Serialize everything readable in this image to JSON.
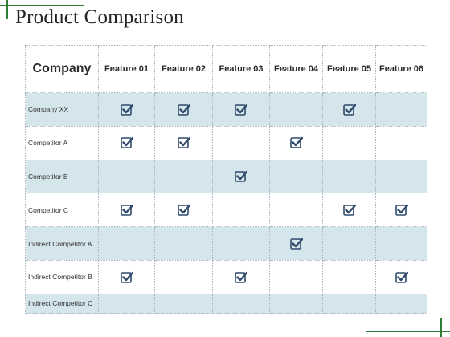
{
  "title": "Product Comparison",
  "table": {
    "company_header": "Company",
    "features": [
      "Feature 01",
      "Feature 02",
      "Feature 03",
      "Feature 04",
      "Feature 05",
      "Feature 06"
    ],
    "rows": [
      {
        "label": "Company XX",
        "checks": [
          true,
          true,
          true,
          false,
          true,
          false
        ]
      },
      {
        "label": "Competitor A",
        "checks": [
          true,
          true,
          false,
          true,
          false,
          false
        ]
      },
      {
        "label": "Competitor B",
        "checks": [
          false,
          false,
          true,
          false,
          false,
          false
        ]
      },
      {
        "label": "Competitor C",
        "checks": [
          true,
          true,
          false,
          false,
          true,
          true
        ]
      },
      {
        "label": "Indirect Competitor A",
        "checks": [
          false,
          false,
          false,
          true,
          false,
          false
        ]
      },
      {
        "label": "Indirect Competitor B",
        "checks": [
          true,
          false,
          true,
          false,
          false,
          true
        ]
      },
      {
        "label": "Indirect Competitor C",
        "checks": [
          false,
          false,
          false,
          false,
          false,
          false
        ]
      }
    ]
  },
  "colors": {
    "accent_line": "#2e7d32",
    "row_shade": "#d4e5eb",
    "check_color": "#2f4a6b"
  },
  "icons": {
    "check": "checkbox-checked-icon"
  }
}
